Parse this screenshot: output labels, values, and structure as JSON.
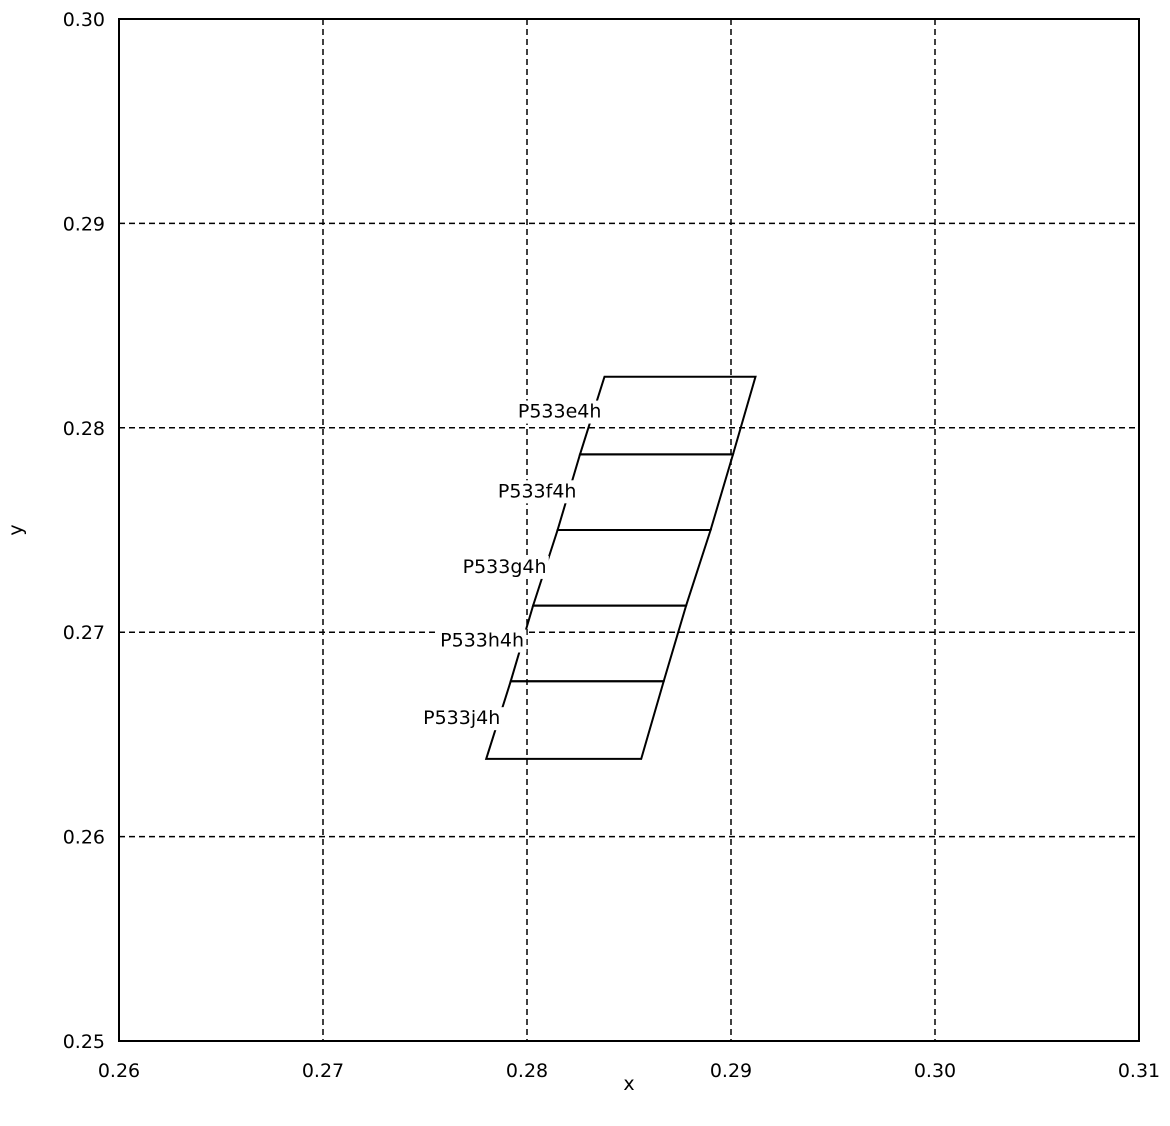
{
  "chart_data": {
    "type": "line",
    "title": "",
    "xlabel": "x",
    "ylabel": "y",
    "xlim": [
      0.26,
      0.31
    ],
    "ylim": [
      0.25,
      0.3
    ],
    "x_ticks": [
      "0.26",
      "0.27",
      "0.28",
      "0.29",
      "0.30",
      "0.31"
    ],
    "y_ticks": [
      "0.25",
      "0.26",
      "0.27",
      "0.28",
      "0.29",
      "0.30"
    ],
    "grid": true,
    "grid_style": "dashed",
    "line_color": "#000000",
    "regions": [
      {
        "label": "P533e4h",
        "points": [
          [
            0.2838,
            0.2825
          ],
          [
            0.2912,
            0.2825
          ],
          [
            0.2901,
            0.2787
          ],
          [
            0.2826,
            0.2787
          ]
        ],
        "label_at": [
          0.2816,
          0.2805
        ]
      },
      {
        "label": "P533f4h",
        "points": [
          [
            0.2826,
            0.2787
          ],
          [
            0.2901,
            0.2787
          ],
          [
            0.289,
            0.275
          ],
          [
            0.2815,
            0.275
          ]
        ],
        "label_at": [
          0.2805,
          0.2766
        ]
      },
      {
        "label": "P533g4h",
        "points": [
          [
            0.2815,
            0.275
          ],
          [
            0.289,
            0.275
          ],
          [
            0.2878,
            0.2713
          ],
          [
            0.2803,
            0.2713
          ]
        ],
        "label_at": [
          0.2789,
          0.2729
        ]
      },
      {
        "label": "P533h4h",
        "points": [
          [
            0.2803,
            0.2713
          ],
          [
            0.2878,
            0.2713
          ],
          [
            0.2867,
            0.2676
          ],
          [
            0.2792,
            0.2676
          ]
        ],
        "label_at": [
          0.2778,
          0.2693
        ]
      },
      {
        "label": "P533j4h",
        "points": [
          [
            0.2792,
            0.2676
          ],
          [
            0.2867,
            0.2676
          ],
          [
            0.2856,
            0.2638
          ],
          [
            0.278,
            0.2638
          ]
        ],
        "label_at": [
          0.2768,
          0.2655
        ]
      }
    ]
  }
}
